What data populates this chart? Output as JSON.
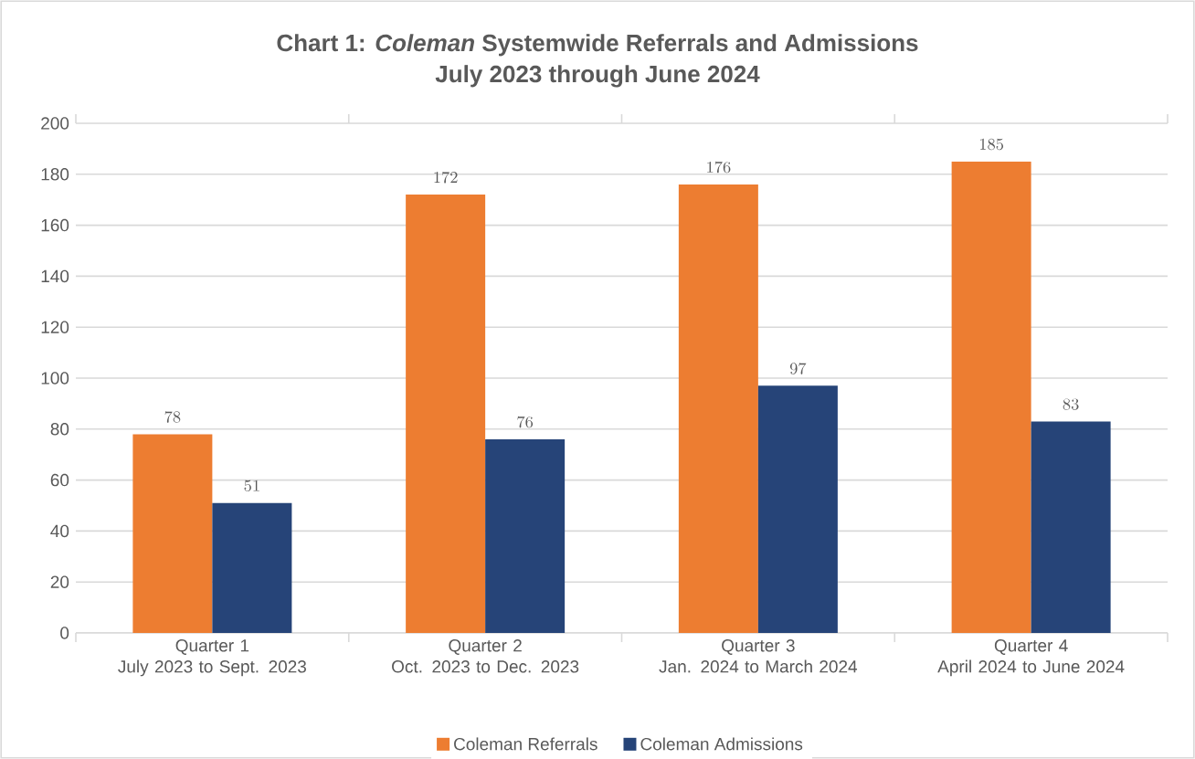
{
  "chart_data": {
    "type": "bar",
    "title": "Chart 1: *Coleman* Systemwide Referrals and Admissions",
    "subtitle": "July 2023 through June 2024",
    "categories": [
      "Quarter 1\nJuly 2023 to Sept. 2023",
      "Quarter 2\nOct. 2023 to Dec. 2023",
      "Quarter 3\nJan. 2024 to March 2024",
      "Quarter 4\nApril 2024 to June 2024"
    ],
    "series": [
      {
        "name": "Coleman Referrals",
        "color": "#ed7d31",
        "values": [
          78,
          172,
          176,
          185
        ]
      },
      {
        "name": "Coleman Admissions",
        "color": "#264478",
        "values": [
          51,
          76,
          97,
          83
        ]
      }
    ],
    "ylim": [
      0,
      200
    ],
    "yticks": [
      0,
      20,
      40,
      60,
      80,
      100,
      120,
      140,
      160,
      180,
      200
    ],
    "grid": "y",
    "legend": "bottom",
    "data_labels": true
  }
}
